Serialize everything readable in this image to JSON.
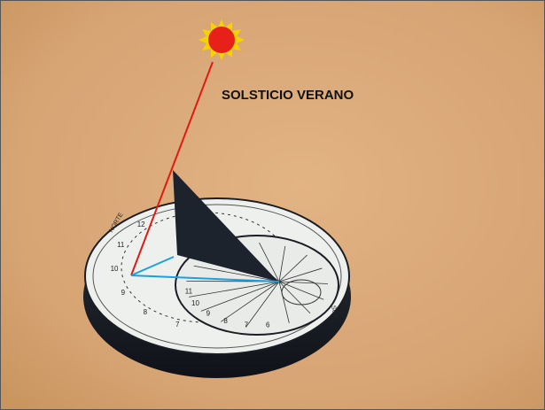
{
  "annotation": "SOLSTICIO VERANO",
  "dial": {
    "north": "NORTE",
    "south": "SUR",
    "outer_hours": [
      "12",
      "11",
      "10",
      "9",
      "8",
      "7"
    ],
    "inner_hours": [
      "11",
      "10",
      "9",
      "8",
      "7",
      "6"
    ]
  }
}
